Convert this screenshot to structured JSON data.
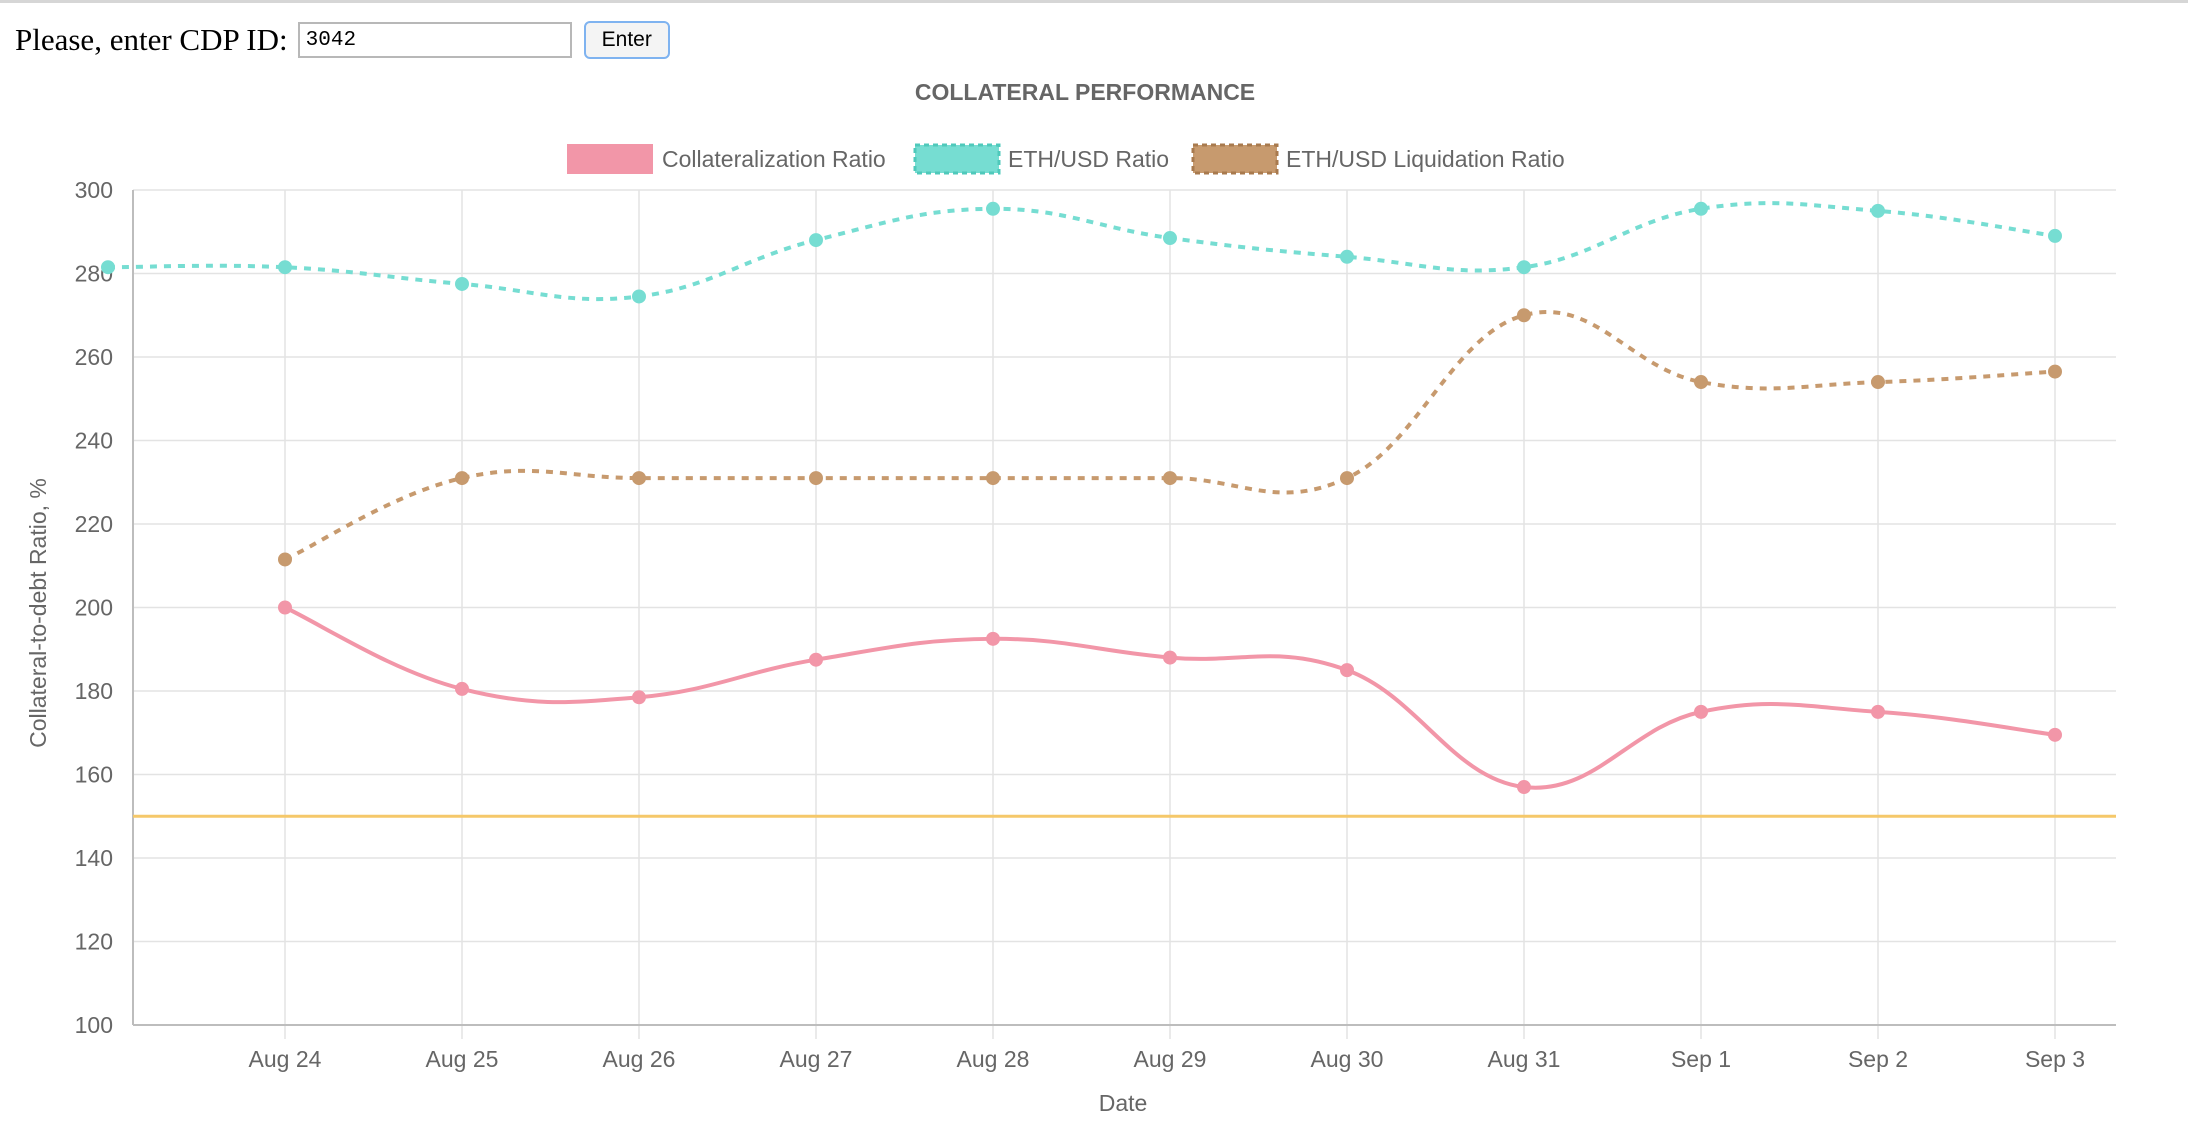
{
  "form": {
    "prompt": "Please, enter CDP ID:",
    "cdp_id_value": "3042",
    "enter_label": "Enter"
  },
  "chart_data": {
    "type": "line",
    "title": "COLLATERAL PERFORMANCE",
    "xlabel": "Date",
    "ylabel": "Collateral-to-debt Ratio, %",
    "ylim": [
      100,
      300
    ],
    "y_ticks": [
      "300",
      "280",
      "260",
      "240",
      "220",
      "200",
      "180",
      "160",
      "140",
      "120",
      "100"
    ],
    "x_ticks": [
      "Aug 24",
      "Aug 25",
      "Aug 26",
      "Aug 27",
      "Aug 28",
      "Aug 29",
      "Aug 30",
      "Aug 31",
      "Sep 1",
      "Sep 2",
      "Sep 3"
    ],
    "grid": true,
    "legend_position": "top",
    "series": [
      {
        "name": "Collateralization Ratio",
        "color": "#f296a8",
        "style": "solid",
        "points": [
          {
            "x": "Aug 24",
            "y": 200
          },
          {
            "x": "Aug 25",
            "y": 180.5
          },
          {
            "x": "Aug 26",
            "y": 178.5
          },
          {
            "x": "Aug 27",
            "y": 187.5
          },
          {
            "x": "Aug 28",
            "y": 192.5
          },
          {
            "x": "Aug 29",
            "y": 188
          },
          {
            "x": "Aug 30",
            "y": 185
          },
          {
            "x": "Aug 31",
            "y": 157
          },
          {
            "x": "Sep 1",
            "y": 175
          },
          {
            "x": "Sep 2",
            "y": 175
          },
          {
            "x": "Sep 3",
            "y": 169.5
          }
        ]
      },
      {
        "name": "ETH/USD Ratio",
        "color": "#76ddd2",
        "style": "dotted",
        "points": [
          {
            "x": "Aug 23",
            "y": 281.5
          },
          {
            "x": "Aug 24",
            "y": 281.5
          },
          {
            "x": "Aug 25",
            "y": 277.5
          },
          {
            "x": "Aug 26",
            "y": 274.5
          },
          {
            "x": "Aug 27",
            "y": 288
          },
          {
            "x": "Aug 28",
            "y": 295.5
          },
          {
            "x": "Aug 29",
            "y": 288.5
          },
          {
            "x": "Aug 30",
            "y": 284
          },
          {
            "x": "Aug 31",
            "y": 281.5
          },
          {
            "x": "Sep 1",
            "y": 295.5
          },
          {
            "x": "Sep 2",
            "y": 295
          },
          {
            "x": "Sep 3",
            "y": 289
          }
        ]
      },
      {
        "name": "ETH/USD Liquidation Ratio",
        "color": "#c79a6e",
        "style": "dotted",
        "points": [
          {
            "x": "Aug 24",
            "y": 211.5
          },
          {
            "x": "Aug 25",
            "y": 231
          },
          {
            "x": "Aug 26",
            "y": 231
          },
          {
            "x": "Aug 27",
            "y": 231
          },
          {
            "x": "Aug 28",
            "y": 231
          },
          {
            "x": "Aug 29",
            "y": 231
          },
          {
            "x": "Aug 30",
            "y": 231
          },
          {
            "x": "Aug 31",
            "y": 270
          },
          {
            "x": "Sep 1",
            "y": 254
          },
          {
            "x": "Sep 2",
            "y": 254
          },
          {
            "x": "Sep 3",
            "y": 256.5
          }
        ]
      }
    ],
    "threshold_line": {
      "y": 150,
      "color": "#f5c86a"
    },
    "colors": {
      "grid": "#e3e3e3",
      "axis": "#bdbdbd",
      "text": "#666666",
      "title": "#666666"
    }
  }
}
